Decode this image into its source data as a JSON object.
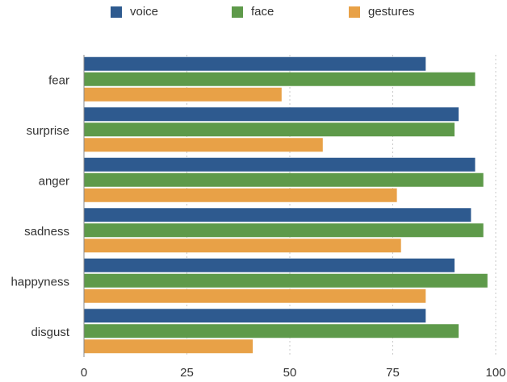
{
  "chart_data": {
    "type": "bar",
    "orientation": "horizontal",
    "categories": [
      "fear",
      "surprise",
      "anger",
      "sadness",
      "happyness",
      "disgust"
    ],
    "series": [
      {
        "name": "voice",
        "color": "#2e5a8f",
        "values": [
          83,
          91,
          95,
          94,
          90,
          83
        ]
      },
      {
        "name": "face",
        "color": "#5e9a4a",
        "values": [
          95,
          90,
          97,
          97,
          98,
          91
        ]
      },
      {
        "name": "gestures",
        "color": "#e8a147",
        "values": [
          48,
          58,
          76,
          77,
          83,
          41
        ]
      }
    ],
    "xlim": [
      0,
      100
    ],
    "xticks": [
      0,
      25,
      50,
      75,
      100
    ],
    "title": "",
    "xlabel": "",
    "ylabel": "",
    "grid": "vertical dashed",
    "legend_position": "top"
  }
}
